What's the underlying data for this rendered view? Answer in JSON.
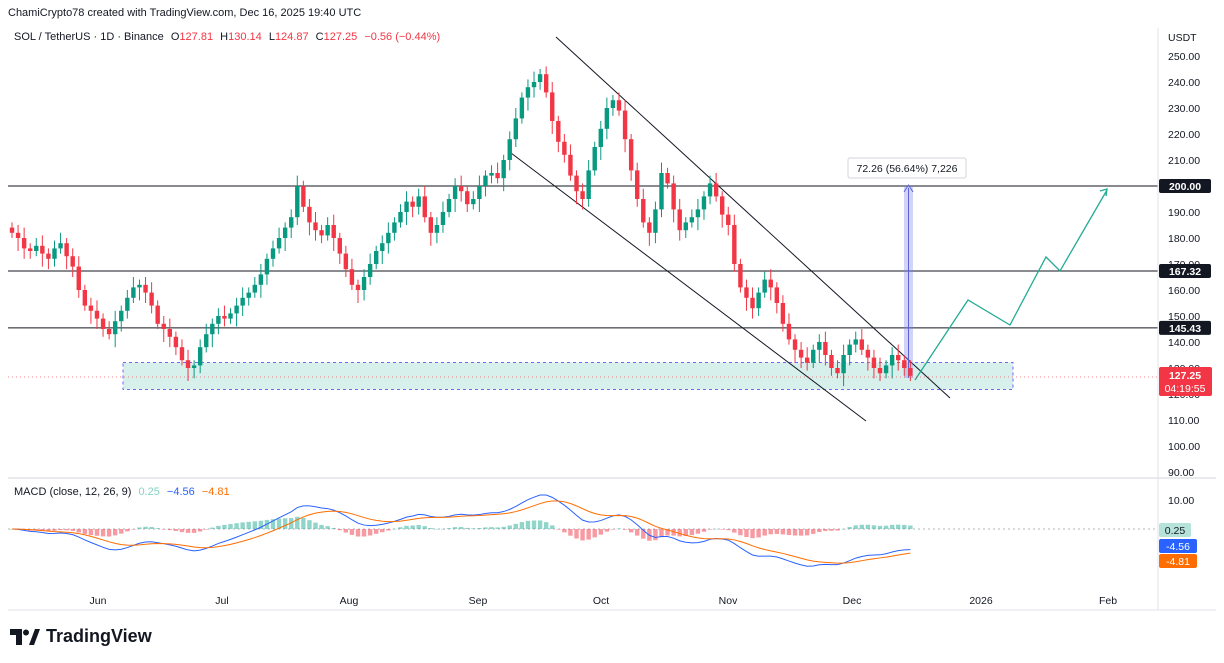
{
  "header": {
    "credit": "ChamiCrypto78 created with TradingView.com, Dec 16, 2025 19:40 UTC"
  },
  "legend": {
    "symbol": "SOL / TetherUS · 1D · Binance",
    "o_label": "O",
    "o": "127.81",
    "h_label": "H",
    "h": "130.14",
    "l_label": "L",
    "l": "124.87",
    "c_label": "C",
    "c": "127.25",
    "change": "−0.56 (−0.44%)"
  },
  "macd_legend": {
    "label": "MACD (close, 12, 26, 9)",
    "hist": "0.25",
    "macd": "−4.56",
    "signal": "−4.81"
  },
  "footer": {
    "brand": "TradingView"
  },
  "chart_data": {
    "type": "candlestick",
    "currency": "USDT",
    "price_axis": {
      "ticks": [
        "250.00",
        "240.00",
        "230.00",
        "220.00",
        "210.00",
        "200.00",
        "190.00",
        "180.00",
        "170.00",
        "160.00",
        "150.00",
        "140.00",
        "130.00",
        "120.00",
        "110.00",
        "100.00",
        "90.00"
      ],
      "min": 90,
      "max": 252
    },
    "macd_axis": {
      "ticks": [
        "10.00"
      ]
    },
    "time_axis": [
      "Jun",
      "Jul",
      "Aug",
      "Sep",
      "Oct",
      "Nov",
      "Dec",
      "2026",
      "Feb"
    ],
    "levels": [
      {
        "value": 200.0,
        "label": "200.00"
      },
      {
        "value": 167.32,
        "label": "167.32"
      },
      {
        "value": 145.43,
        "label": "145.43"
      }
    ],
    "last_price": {
      "label": "127.25",
      "countdown": "04:19:55"
    },
    "macd_labels": {
      "hist": "0.25",
      "macd": "-4.56",
      "signal": "-4.81"
    },
    "measure_label": "72.26 (56.64%) 7,226",
    "support_zone": [
      122,
      132
    ],
    "close_series": [
      182,
      180,
      176,
      175,
      177,
      174,
      172,
      176,
      178,
      173,
      169,
      160,
      154,
      152,
      149,
      145,
      143,
      148,
      152,
      157,
      161,
      162,
      159,
      154,
      147,
      145,
      142,
      138,
      133,
      130,
      131,
      138,
      143,
      147,
      150,
      149,
      151,
      154,
      157,
      159,
      162,
      166,
      172,
      176,
      180,
      184,
      188,
      200,
      192,
      186,
      183,
      181,
      185,
      180,
      174,
      168,
      162,
      160,
      165,
      170,
      175,
      178,
      182,
      186,
      190,
      194,
      192,
      196,
      188,
      182,
      185,
      190,
      195,
      200,
      198,
      193,
      195,
      200,
      204,
      205,
      203,
      210,
      218,
      226,
      234,
      238,
      240,
      243,
      236,
      225,
      217,
      212,
      204,
      198,
      195,
      206,
      215,
      222,
      230,
      233,
      229,
      218,
      206,
      195,
      186,
      182,
      191,
      205,
      201,
      191,
      183,
      186,
      188,
      191,
      196,
      201,
      196,
      189,
      185,
      170,
      161,
      157,
      153,
      159,
      164,
      161,
      155,
      147,
      141,
      137,
      134,
      132,
      137,
      140,
      135,
      130,
      128,
      135,
      139,
      141,
      137,
      134,
      130,
      128,
      131,
      135,
      133,
      130,
      127
    ]
  }
}
